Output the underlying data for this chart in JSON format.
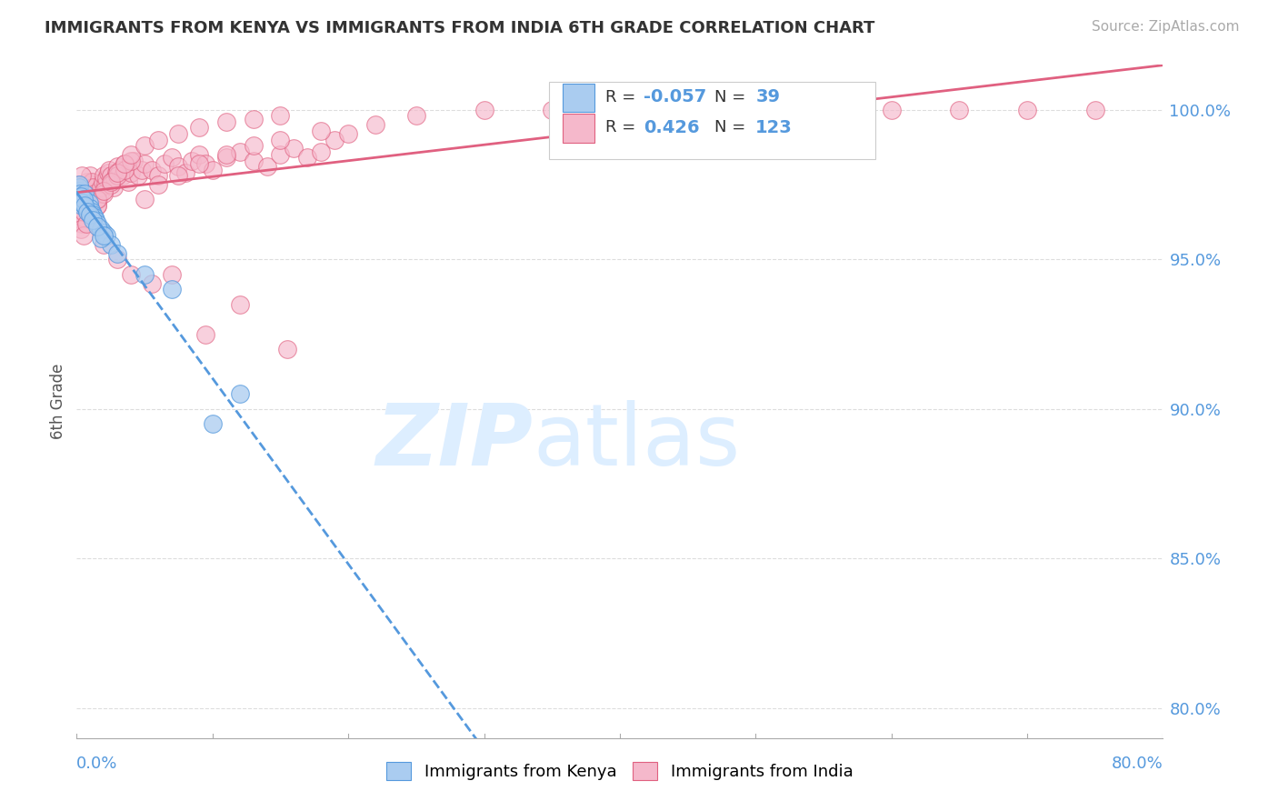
{
  "title": "IMMIGRANTS FROM KENYA VS IMMIGRANTS FROM INDIA 6TH GRADE CORRELATION CHART",
  "source": "Source: ZipAtlas.com",
  "ylabel": "6th Grade",
  "y_ticks": [
    80.0,
    85.0,
    90.0,
    95.0,
    100.0
  ],
  "x_lim": [
    0.0,
    80.0
  ],
  "y_lim": [
    79.0,
    101.5
  ],
  "kenya_color": "#aaccf0",
  "kenya_edge_color": "#5599dd",
  "india_color": "#f5b8cb",
  "india_edge_color": "#e06080",
  "kenya_R": -0.057,
  "kenya_N": 39,
  "india_R": 0.426,
  "india_N": 123,
  "kenya_trend_color": "#5599dd",
  "india_trend_color": "#e06080",
  "watermark": "ZIPatlas",
  "watermark_color": "#ddeeff",
  "background_color": "#ffffff",
  "grid_color": "#dddddd",
  "kenya_scatter_x": [
    0.1,
    0.15,
    0.2,
    0.25,
    0.3,
    0.35,
    0.4,
    0.45,
    0.5,
    0.55,
    0.6,
    0.7,
    0.8,
    0.9,
    1.0,
    1.1,
    1.2,
    1.3,
    1.4,
    1.5,
    1.8,
    2.0,
    2.2,
    2.5,
    0.3,
    0.4,
    0.5,
    0.6,
    0.8,
    1.0,
    1.2,
    1.8,
    3.0,
    5.0,
    7.0,
    1.5,
    2.0,
    10.0,
    12.0
  ],
  "kenya_scatter_y": [
    97.3,
    97.4,
    97.5,
    97.2,
    97.0,
    96.9,
    96.8,
    97.1,
    97.0,
    96.8,
    97.2,
    96.7,
    96.8,
    96.9,
    96.7,
    96.6,
    96.5,
    96.4,
    96.3,
    96.2,
    96.0,
    95.9,
    95.8,
    95.5,
    97.1,
    96.9,
    97.0,
    96.8,
    96.6,
    96.5,
    96.3,
    95.7,
    95.2,
    94.5,
    94.0,
    96.1,
    95.8,
    89.5,
    90.5
  ],
  "india_scatter_x": [
    0.1,
    0.15,
    0.2,
    0.25,
    0.3,
    0.35,
    0.4,
    0.45,
    0.5,
    0.55,
    0.6,
    0.65,
    0.7,
    0.75,
    0.8,
    0.85,
    0.9,
    0.95,
    1.0,
    1.1,
    1.2,
    1.3,
    1.4,
    1.5,
    1.6,
    1.7,
    1.8,
    1.9,
    2.0,
    2.1,
    2.2,
    2.3,
    2.4,
    2.5,
    2.6,
    2.7,
    2.8,
    2.9,
    3.0,
    3.2,
    3.4,
    3.5,
    3.8,
    4.0,
    4.2,
    4.5,
    4.8,
    5.0,
    5.5,
    6.0,
    6.5,
    7.0,
    7.5,
    8.0,
    8.5,
    9.0,
    9.5,
    10.0,
    11.0,
    12.0,
    13.0,
    14.0,
    15.0,
    16.0,
    17.0,
    18.0,
    19.0,
    20.0,
    22.0,
    25.0,
    30.0,
    35.0,
    40.0,
    45.0,
    50.0,
    55.0,
    60.0,
    65.0,
    70.0,
    75.0,
    0.3,
    0.5,
    0.7,
    1.0,
    1.5,
    2.0,
    2.5,
    3.0,
    3.5,
    4.0,
    5.0,
    6.0,
    7.5,
    9.0,
    11.0,
    13.0,
    15.0,
    18.0,
    2.0,
    3.0,
    4.0,
    5.5,
    7.0,
    9.5,
    12.0,
    15.5,
    0.4,
    0.6,
    0.8,
    1.0,
    1.5,
    2.0,
    2.5,
    3.0,
    3.5,
    4.0,
    5.0,
    6.0,
    7.5,
    9.0,
    11.0,
    13.0,
    15.0
  ],
  "india_scatter_y": [
    97.5,
    97.3,
    97.0,
    96.8,
    96.5,
    96.3,
    96.2,
    96.4,
    96.6,
    96.8,
    97.0,
    97.2,
    97.4,
    97.6,
    97.3,
    97.1,
    96.9,
    97.5,
    97.8,
    97.6,
    97.4,
    97.2,
    97.0,
    96.8,
    97.0,
    97.2,
    97.4,
    97.6,
    97.8,
    97.5,
    97.7,
    97.9,
    98.0,
    97.8,
    97.6,
    97.4,
    97.7,
    97.9,
    98.1,
    98.0,
    97.8,
    98.2,
    97.6,
    97.9,
    98.3,
    97.8,
    98.0,
    98.2,
    98.0,
    97.8,
    98.2,
    98.4,
    98.1,
    97.9,
    98.3,
    98.5,
    98.2,
    98.0,
    98.4,
    98.6,
    98.3,
    98.1,
    98.5,
    98.7,
    98.4,
    98.6,
    99.0,
    99.2,
    99.5,
    99.8,
    100.0,
    100.0,
    100.0,
    100.0,
    100.0,
    100.0,
    100.0,
    100.0,
    100.0,
    100.0,
    96.0,
    95.8,
    96.2,
    96.5,
    96.8,
    97.2,
    97.5,
    97.8,
    98.0,
    98.3,
    97.0,
    97.5,
    97.8,
    98.2,
    98.5,
    98.8,
    99.0,
    99.3,
    95.5,
    95.0,
    94.5,
    94.2,
    94.5,
    92.5,
    93.5,
    92.0,
    97.8,
    97.2,
    96.8,
    96.5,
    97.0,
    97.3,
    97.6,
    97.9,
    98.2,
    98.5,
    98.8,
    99.0,
    99.2,
    99.4,
    99.6,
    99.7,
    99.8
  ]
}
